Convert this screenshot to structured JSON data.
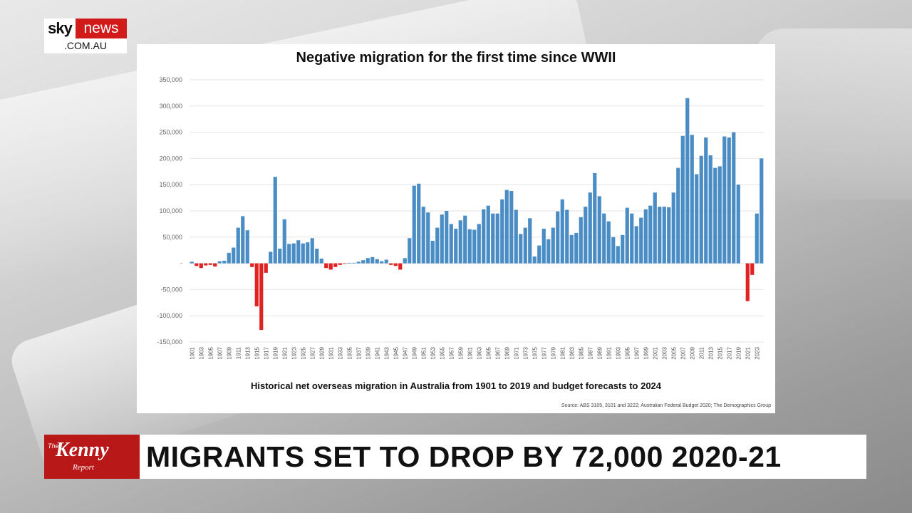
{
  "channel": {
    "logo_top_left": "sky",
    "logo_top_right": "news",
    "logo_domain": ".COM.AU"
  },
  "lower_third": {
    "show_name_prefix": "The",
    "show_name": "Kenny",
    "show_name_suffix": "Report",
    "headline": "MIGRANTS SET TO DROP BY 72,000 2020-21"
  },
  "colors": {
    "positive_bar": "#4a8cc4",
    "negative_bar": "#e02222",
    "brand_red": "#d11a1a"
  },
  "chart_data": {
    "type": "bar",
    "title": "Negative migration for the first time since WWII",
    "subtitle": "Historical net overseas migration in Australia from 1901 to 2019 and budget forecasts to 2024",
    "source": "Source:  ABS 3105, 3101 and 3222; Australian Federal Budget 2020; The Demographics Group",
    "ylim": [
      -150000,
      350000
    ],
    "y_ticks": [
      -150000,
      -100000,
      -50000,
      0,
      50000,
      100000,
      150000,
      200000,
      250000,
      300000,
      350000
    ],
    "y_tick_labels": [
      "-150,000",
      "-100,000",
      "-50,000",
      "-",
      "50,000",
      "100,000",
      "150,000",
      "200,000",
      "250,000",
      "300,000",
      "350,000"
    ],
    "grid": true,
    "x_start": 1901,
    "x_end": 2024,
    "x_tick_labels": [
      "1901",
      "1903",
      "1905",
      "1907",
      "1909",
      "1911",
      "1913",
      "1915",
      "1917",
      "1919",
      "1921",
      "1923",
      "1925",
      "1927",
      "1929",
      "1931",
      "1933",
      "1935",
      "1937",
      "1939",
      "1941",
      "1943",
      "1945",
      "1947",
      "1949",
      "1951",
      "1953",
      "1955",
      "1957",
      "1959",
      "1961",
      "1963",
      "1965",
      "1967",
      "1969",
      "1971",
      "1973",
      "1975",
      "1977",
      "1979",
      "1981",
      "1983",
      "1985",
      "1987",
      "1989",
      "1991",
      "1993",
      "1995",
      "1997",
      "1999",
      "2001",
      "2003",
      "2005",
      "2007",
      "2009",
      "2011",
      "2013",
      "2015",
      "2017",
      "2019",
      "2021",
      "2023"
    ],
    "values": [
      3000,
      -5000,
      -9000,
      -4000,
      -3000,
      -6000,
      4000,
      5000,
      20000,
      30000,
      68000,
      90000,
      63000,
      -7000,
      -82000,
      -127000,
      -18000,
      22000,
      165000,
      28000,
      84000,
      37000,
      38000,
      44000,
      38000,
      40000,
      48000,
      28000,
      9000,
      -9000,
      -12000,
      -7000,
      -3000,
      -1000,
      1000,
      1000,
      3000,
      6000,
      10000,
      12000,
      8000,
      4000,
      7000,
      -3000,
      -5000,
      -12000,
      10000,
      48000,
      148000,
      152000,
      108000,
      97000,
      43000,
      68000,
      93000,
      100000,
      75000,
      66000,
      82000,
      91000,
      65000,
      64000,
      75000,
      103000,
      110000,
      95000,
      95000,
      122000,
      140000,
      138000,
      102000,
      56000,
      68000,
      86000,
      13000,
      34000,
      66000,
      46000,
      68000,
      99000,
      122000,
      102000,
      54000,
      58000,
      88000,
      108000,
      135000,
      172000,
      128000,
      95000,
      80000,
      50000,
      33000,
      54000,
      106000,
      95000,
      71000,
      87000,
      103000,
      110000,
      135000,
      108000,
      108000,
      107000,
      135000,
      182000,
      243000,
      315000,
      245000,
      170000,
      205000,
      240000,
      206000,
      182000,
      185000,
      242000,
      240000,
      250000,
      150000,
      null,
      -72000,
      -22000,
      95000,
      200000
    ]
  }
}
